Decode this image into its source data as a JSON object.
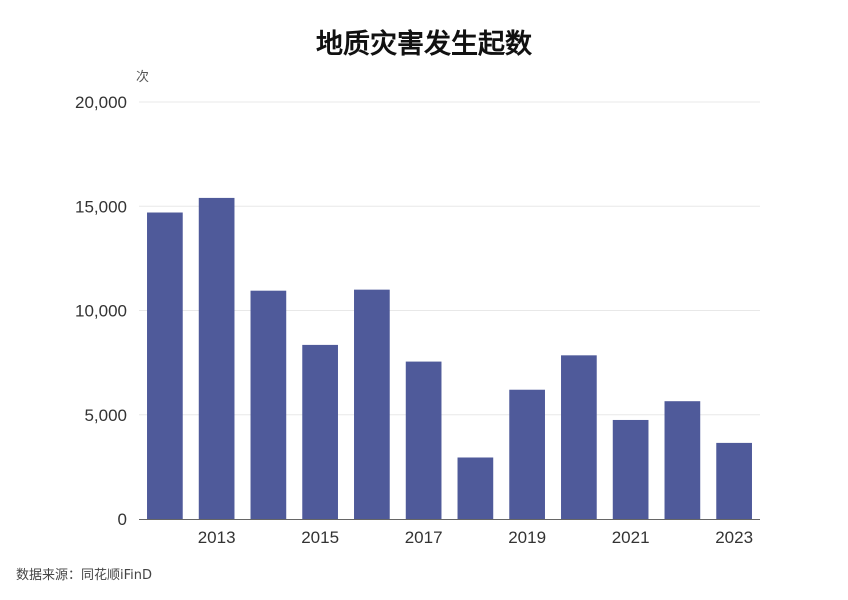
{
  "title": "地质灾害发生起数",
  "y_unit": "次",
  "source": "数据来源：同花顺iFinD",
  "chart_data": {
    "type": "bar",
    "title": "地质灾害发生起数",
    "xlabel": "",
    "ylabel": "次",
    "categories": [
      "2012",
      "2013",
      "2014",
      "2015",
      "2016",
      "2017",
      "2018",
      "2019",
      "2020",
      "2021",
      "2022",
      "2023"
    ],
    "x_tick_labels": [
      "2013",
      "2015",
      "2017",
      "2019",
      "2021",
      "2023"
    ],
    "values": [
      14700,
      15400,
      10950,
      8350,
      11000,
      7550,
      2950,
      6200,
      7850,
      4750,
      5650,
      3650
    ],
    "y_ticks": [
      "0",
      "5,000",
      "10,000",
      "15,000",
      "20,000"
    ],
    "ylim": [
      0,
      20000
    ],
    "grid": true,
    "legend": "none",
    "bar_color": "#4f5a9a",
    "grid_color": "#e8e8e8",
    "axis_color": "#666666"
  }
}
